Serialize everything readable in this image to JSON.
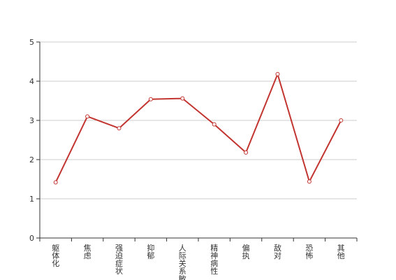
{
  "chart_data": {
    "type": "line",
    "categories": [
      "躯体化",
      "焦虑",
      "强迫症状",
      "抑郁",
      "人际关系敏感",
      "精神病性",
      "偏执",
      "敌对",
      "恐怖",
      "其他"
    ],
    "series": [
      {
        "values": [
          1.42,
          3.1,
          2.8,
          3.54,
          3.56,
          2.9,
          2.18,
          4.18,
          1.44,
          3.0
        ]
      }
    ],
    "y_ticks": [
      "0",
      "1",
      "2",
      "3",
      "4",
      "5"
    ],
    "ylim": [
      0,
      5
    ],
    "grid": true,
    "line_color": "#c23531",
    "grid_color": "#cccccc",
    "axis_color": "#333333",
    "label_color": "#333333"
  }
}
